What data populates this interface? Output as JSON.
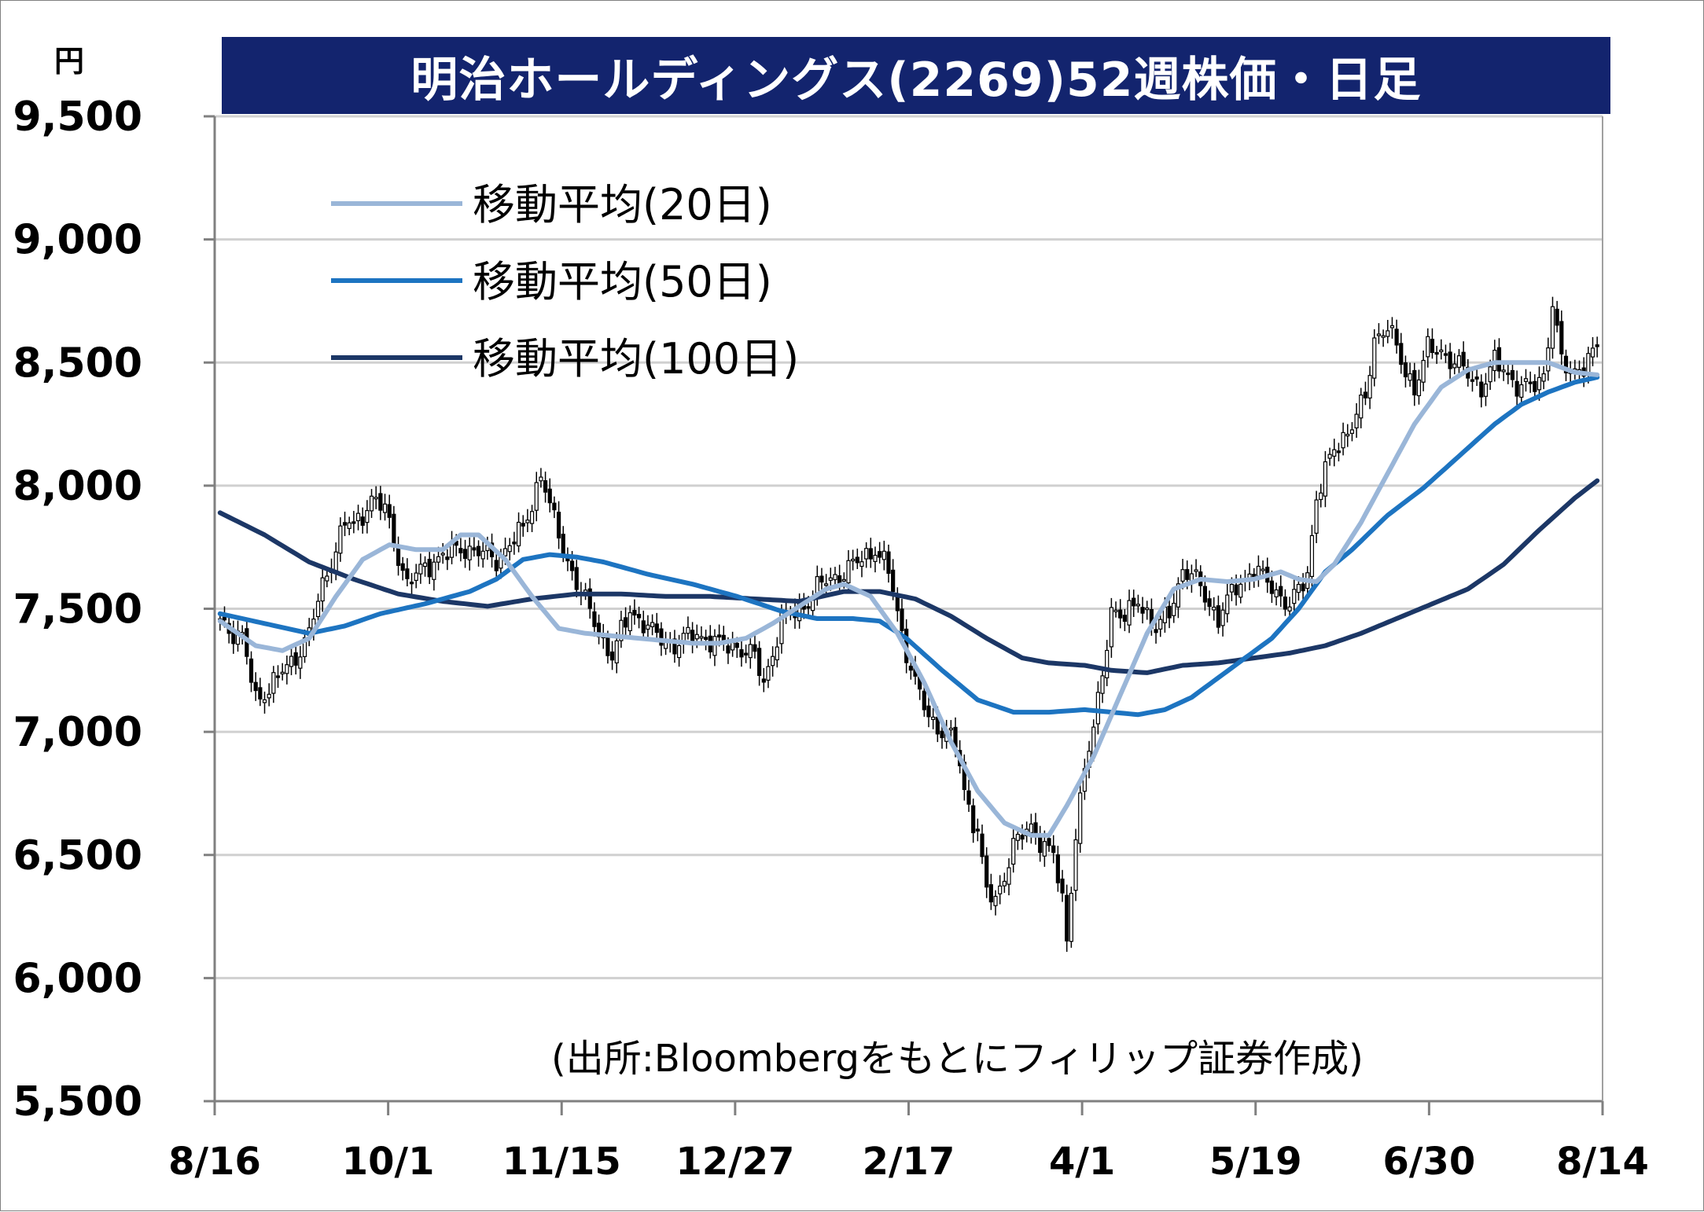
{
  "title": "明治ホールディングス(2269)52週株価・日足",
  "unit": "円",
  "source": "(出所:Bloombergをもとにフィリップ証券作成)",
  "colors": {
    "title_bg": "#13246e",
    "ma20": "#9ab6d8",
    "ma50": "#1d74c1",
    "ma100": "#1c3766",
    "candle_border": "#000000",
    "grid": "#d0d0d0"
  },
  "chart_data": {
    "type": "candlestick",
    "ylim": [
      5500,
      9500
    ],
    "y_ticks": [
      "9,500",
      "9,000",
      "8,500",
      "8,000",
      "7,500",
      "7,000",
      "6,500",
      "6,000",
      "5,500"
    ],
    "y_tick_values": [
      9500,
      9000,
      8500,
      8000,
      7500,
      7000,
      6500,
      6000,
      5500
    ],
    "x_ticks": [
      "8/16",
      "10/1",
      "11/15",
      "12/27",
      "2/17",
      "4/1",
      "5/19",
      "6/30",
      "8/14"
    ],
    "n_days": 246,
    "legend": [
      {
        "label": "移動平均(20日)",
        "color_key": "ma20"
      },
      {
        "label": "移動平均(50日)",
        "color_key": "ma50"
      },
      {
        "label": "移動平均(100日)",
        "color_key": "ma100"
      }
    ],
    "close_anchors": [
      [
        0,
        7450
      ],
      [
        5,
        7380
      ],
      [
        8,
        7130
      ],
      [
        12,
        7200
      ],
      [
        16,
        7280
      ],
      [
        20,
        7400
      ],
      [
        24,
        7650
      ],
      [
        28,
        7850
      ],
      [
        30,
        7830
      ],
      [
        34,
        7950
      ],
      [
        37,
        7900
      ],
      [
        42,
        7600
      ],
      [
        48,
        7700
      ],
      [
        55,
        7750
      ],
      [
        62,
        7700
      ],
      [
        68,
        7820
      ],
      [
        72,
        8050
      ],
      [
        75,
        7850
      ],
      [
        80,
        7600
      ],
      [
        84,
        7450
      ],
      [
        88,
        7300
      ],
      [
        92,
        7500
      ],
      [
        97,
        7400
      ],
      [
        102,
        7350
      ],
      [
        107,
        7400
      ],
      [
        112,
        7350
      ],
      [
        116,
        7350
      ],
      [
        120,
        7300
      ],
      [
        122,
        7200
      ],
      [
        126,
        7450
      ],
      [
        130,
        7500
      ],
      [
        135,
        7600
      ],
      [
        140,
        7650
      ],
      [
        144,
        7700
      ],
      [
        147,
        7750
      ],
      [
        150,
        7650
      ],
      [
        153,
        7400
      ],
      [
        156,
        7200
      ],
      [
        159,
        7050
      ],
      [
        163,
        7000
      ],
      [
        165,
        6950
      ],
      [
        167,
        6750
      ],
      [
        170,
        6600
      ],
      [
        172,
        6350
      ],
      [
        174,
        6300
      ],
      [
        178,
        6550
      ],
      [
        182,
        6600
      ],
      [
        185,
        6550
      ],
      [
        187,
        6500
      ],
      [
        189,
        6300
      ],
      [
        190,
        6150
      ],
      [
        192,
        6600
      ],
      [
        194,
        6850
      ],
      [
        196,
        7000
      ],
      [
        198,
        7250
      ],
      [
        200,
        7500
      ],
      [
        203,
        7450
      ],
      [
        206,
        7550
      ],
      [
        210,
        7400
      ],
      [
        213,
        7500
      ],
      [
        216,
        7650
      ],
      [
        220,
        7600
      ],
      [
        224,
        7450
      ],
      [
        228,
        7600
      ],
      [
        232,
        7650
      ],
      [
        236,
        7600
      ],
      [
        240,
        7500
      ],
      [
        244,
        7650
      ],
      [
        246,
        7950
      ],
      [
        250,
        8150
      ],
      [
        254,
        8250
      ],
      [
        257,
        8350
      ],
      [
        259,
        8600
      ],
      [
        262,
        8650
      ],
      [
        265,
        8500
      ],
      [
        268,
        8400
      ],
      [
        271,
        8550
      ],
      [
        274,
        8550
      ],
      [
        277,
        8500
      ],
      [
        280,
        8450
      ],
      [
        283,
        8400
      ],
      [
        286,
        8500
      ],
      [
        289,
        8450
      ],
      [
        292,
        8400
      ],
      [
        295,
        8400
      ],
      [
        297,
        8450
      ],
      [
        299,
        8750
      ],
      [
        301,
        8500
      ],
      [
        303,
        8450
      ],
      [
        306,
        8500
      ],
      [
        309,
        8550
      ]
    ],
    "ma20_anchors": [
      [
        0,
        7450
      ],
      [
        8,
        7350
      ],
      [
        14,
        7330
      ],
      [
        20,
        7380
      ],
      [
        26,
        7550
      ],
      [
        32,
        7700
      ],
      [
        38,
        7760
      ],
      [
        44,
        7740
      ],
      [
        50,
        7740
      ],
      [
        54,
        7800
      ],
      [
        58,
        7800
      ],
      [
        64,
        7700
      ],
      [
        70,
        7550
      ],
      [
        76,
        7420
      ],
      [
        82,
        7400
      ],
      [
        88,
        7390
      ],
      [
        94,
        7380
      ],
      [
        100,
        7370
      ],
      [
        106,
        7360
      ],
      [
        112,
        7360
      ],
      [
        118,
        7380
      ],
      [
        124,
        7440
      ],
      [
        130,
        7510
      ],
      [
        136,
        7580
      ],
      [
        140,
        7600
      ],
      [
        146,
        7550
      ],
      [
        152,
        7400
      ],
      [
        158,
        7200
      ],
      [
        164,
        6960
      ],
      [
        170,
        6760
      ],
      [
        176,
        6630
      ],
      [
        182,
        6580
      ],
      [
        186,
        6580
      ],
      [
        190,
        6700
      ],
      [
        196,
        6900
      ],
      [
        202,
        7150
      ],
      [
        208,
        7400
      ],
      [
        214,
        7580
      ],
      [
        220,
        7620
      ],
      [
        226,
        7610
      ],
      [
        232,
        7620
      ],
      [
        238,
        7650
      ],
      [
        242,
        7620
      ],
      [
        246,
        7610
      ],
      [
        250,
        7680
      ],
      [
        256,
        7850
      ],
      [
        262,
        8050
      ],
      [
        268,
        8250
      ],
      [
        274,
        8400
      ],
      [
        280,
        8470
      ],
      [
        286,
        8500
      ],
      [
        292,
        8500
      ],
      [
        298,
        8500
      ],
      [
        304,
        8460
      ],
      [
        309,
        8450
      ]
    ],
    "ma50_anchors": [
      [
        0,
        7480
      ],
      [
        10,
        7440
      ],
      [
        20,
        7400
      ],
      [
        28,
        7430
      ],
      [
        36,
        7480
      ],
      [
        46,
        7520
      ],
      [
        56,
        7570
      ],
      [
        62,
        7620
      ],
      [
        68,
        7700
      ],
      [
        74,
        7720
      ],
      [
        80,
        7710
      ],
      [
        86,
        7690
      ],
      [
        96,
        7640
      ],
      [
        106,
        7600
      ],
      [
        116,
        7550
      ],
      [
        126,
        7490
      ],
      [
        134,
        7460
      ],
      [
        142,
        7460
      ],
      [
        148,
        7450
      ],
      [
        154,
        7380
      ],
      [
        162,
        7250
      ],
      [
        170,
        7130
      ],
      [
        178,
        7080
      ],
      [
        186,
        7080
      ],
      [
        194,
        7090
      ],
      [
        200,
        7080
      ],
      [
        206,
        7070
      ],
      [
        212,
        7090
      ],
      [
        218,
        7140
      ],
      [
        224,
        7220
      ],
      [
        230,
        7300
      ],
      [
        236,
        7380
      ],
      [
        242,
        7500
      ],
      [
        248,
        7650
      ],
      [
        254,
        7740
      ],
      [
        262,
        7880
      ],
      [
        270,
        7990
      ],
      [
        278,
        8120
      ],
      [
        286,
        8250
      ],
      [
        292,
        8330
      ],
      [
        298,
        8380
      ],
      [
        304,
        8420
      ],
      [
        309,
        8440
      ]
    ],
    "ma100_anchors": [
      [
        0,
        7890
      ],
      [
        10,
        7800
      ],
      [
        20,
        7690
      ],
      [
        30,
        7620
      ],
      [
        40,
        7560
      ],
      [
        50,
        7530
      ],
      [
        60,
        7510
      ],
      [
        70,
        7540
      ],
      [
        80,
        7560
      ],
      [
        90,
        7560
      ],
      [
        100,
        7550
      ],
      [
        110,
        7550
      ],
      [
        120,
        7540
      ],
      [
        130,
        7530
      ],
      [
        140,
        7570
      ],
      [
        148,
        7570
      ],
      [
        156,
        7540
      ],
      [
        164,
        7470
      ],
      [
        172,
        7380
      ],
      [
        180,
        7300
      ],
      [
        186,
        7280
      ],
      [
        194,
        7270
      ],
      [
        200,
        7250
      ],
      [
        208,
        7240
      ],
      [
        216,
        7270
      ],
      [
        224,
        7280
      ],
      [
        232,
        7300
      ],
      [
        240,
        7320
      ],
      [
        248,
        7350
      ],
      [
        256,
        7400
      ],
      [
        264,
        7460
      ],
      [
        272,
        7520
      ],
      [
        280,
        7580
      ],
      [
        288,
        7680
      ],
      [
        296,
        7820
      ],
      [
        304,
        7950
      ],
      [
        309,
        8020
      ]
    ]
  }
}
